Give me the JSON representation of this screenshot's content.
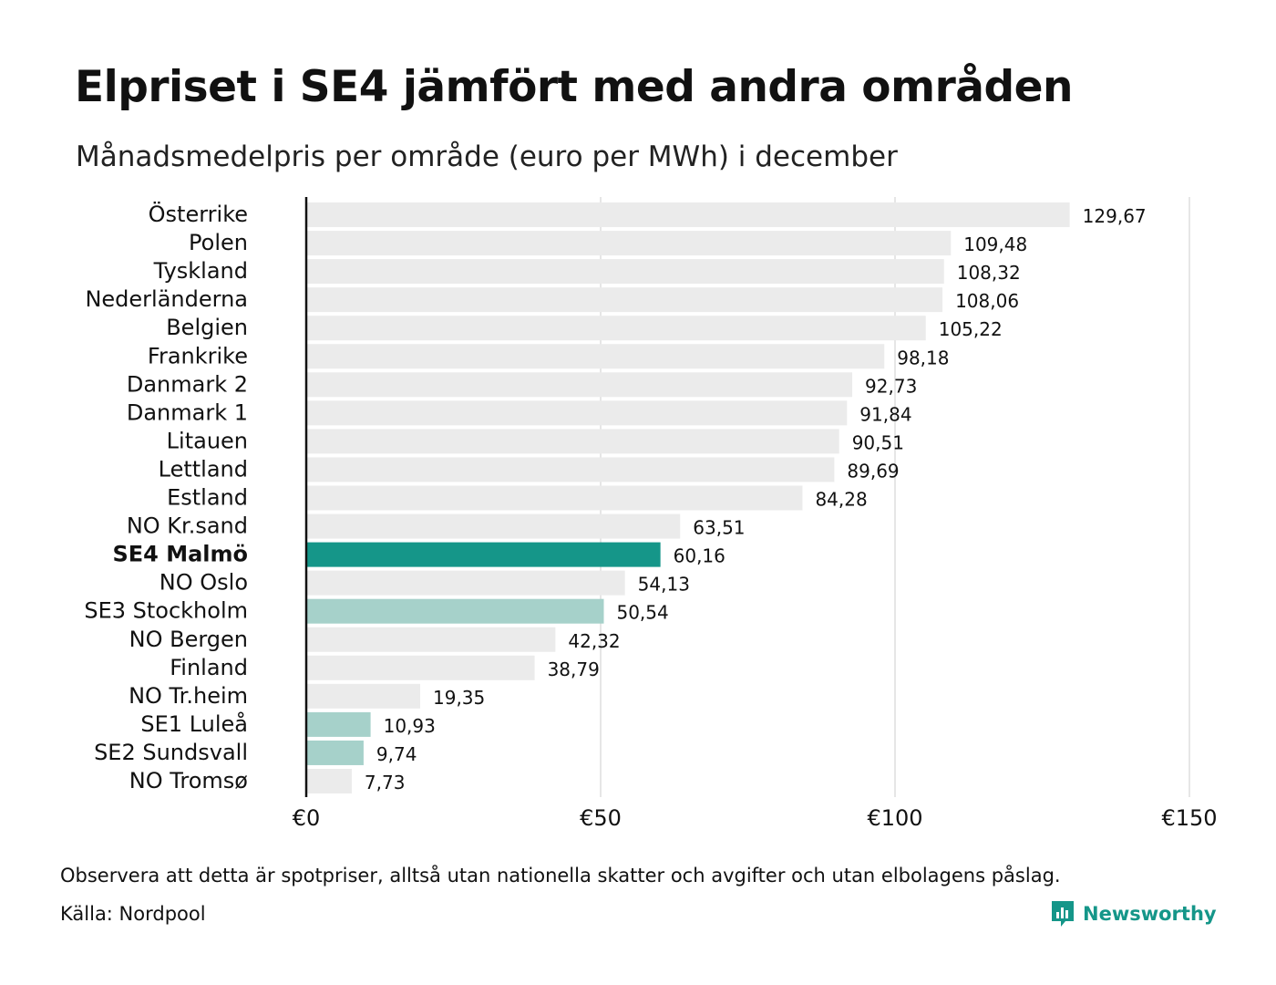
{
  "header": {
    "title": "Elpriset i SE4 jämfört med andra områden",
    "subtitle": "Månadsmedelpris per område (euro per MWh) i december"
  },
  "footer": {
    "note": "Observera att detta är spotpriser, alltså utan nationella skatter och avgifter och utan elbolagens påslag.",
    "source": "Källa: Nordpool",
    "brand": "Newsworthy",
    "brand_icon": "bar-chart-speech-bubble-icon"
  },
  "colors": {
    "default_bar": "#ebebeb",
    "highlight_bar": "#159689",
    "secondary_bar": "#a6d1ca",
    "gridline": "#cccccc",
    "axis": "#111111"
  },
  "chart_data": {
    "type": "bar",
    "orientation": "horizontal",
    "categories": [
      "Österrike",
      "Polen",
      "Tyskland",
      "Nederländerna",
      "Belgien",
      "Frankrike",
      "Danmark  2",
      "Danmark  1",
      "Litauen",
      "Lettland",
      "Estland",
      "NO Kr.sand",
      "SE4 Malmö",
      "NO Oslo",
      "SE3  Stockholm",
      "NO Bergen",
      "Finland",
      "NO Tr.heim",
      "SE1  Luleå",
      "SE2  Sundsvall",
      "NO Tromsø"
    ],
    "values": [
      129.67,
      109.48,
      108.32,
      108.06,
      105.22,
      98.18,
      92.73,
      91.84,
      90.51,
      89.69,
      84.28,
      63.51,
      60.16,
      54.13,
      50.54,
      42.32,
      38.79,
      19.35,
      10.93,
      9.74,
      7.73
    ],
    "value_labels": [
      "129,67",
      "109,48",
      "108,32",
      "108,06",
      "105,22",
      "98,18",
      "92,73",
      "91,84",
      "90,51",
      "89,69",
      "84,28",
      "63,51",
      "60,16",
      "54,13",
      "50,54",
      "42,32",
      "38,79",
      "19,35",
      "10,93",
      "9,74",
      "7,73"
    ],
    "highlight": [
      "default",
      "default",
      "default",
      "default",
      "default",
      "default",
      "default",
      "default",
      "default",
      "default",
      "default",
      "default",
      "primary",
      "default",
      "secondary",
      "default",
      "default",
      "default",
      "secondary",
      "secondary",
      "default"
    ],
    "xlim": [
      0,
      150
    ],
    "xticks": [
      0,
      50,
      100,
      150
    ],
    "xtick_labels": [
      "€0",
      "€50",
      "€100",
      "€150"
    ],
    "grid": "vertical",
    "legend": "none"
  }
}
